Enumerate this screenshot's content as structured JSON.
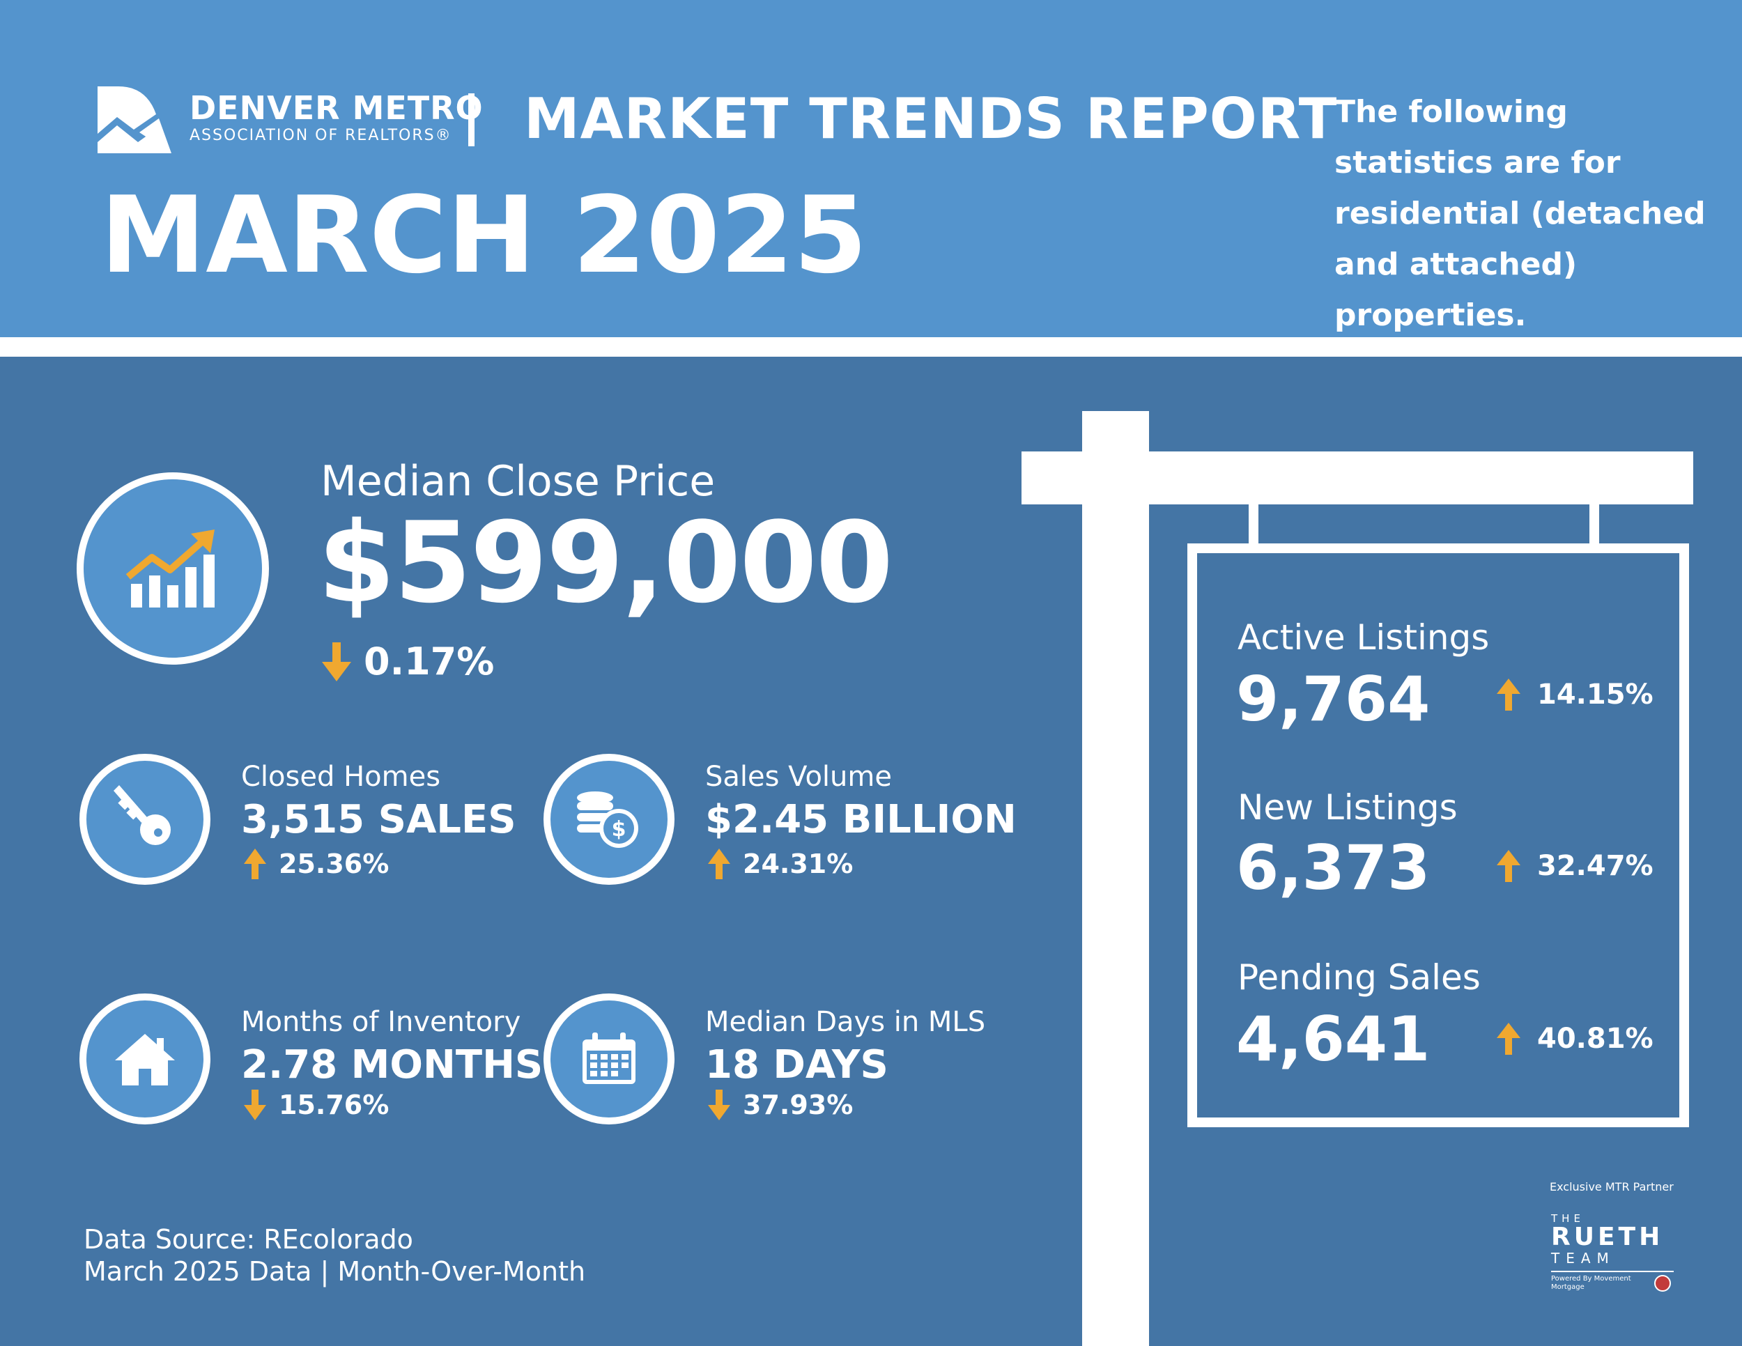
{
  "header": {
    "org_name": "DENVER METRO",
    "org_sub": "ASSOCIATION OF REALTORS®",
    "report_title": "MARKET TRENDS REPORT",
    "month": "MARCH 2025",
    "note": "The following statistics are for residential (detached and attached) properties."
  },
  "median_close_price": {
    "label": "Median Close Price",
    "value": "$599,000",
    "change": "0.17%",
    "direction": "down"
  },
  "closed_homes": {
    "label": "Closed Homes",
    "value": "3,515 SALES",
    "change": "25.36%",
    "direction": "up",
    "icon": "key-icon"
  },
  "sales_volume": {
    "label": "Sales Volume",
    "value": "$2.45 BILLION",
    "change": "24.31%",
    "direction": "up",
    "icon": "coins-icon"
  },
  "months_inventory": {
    "label": "Months of Inventory",
    "value": "2.78 MONTHS",
    "change": "15.76%",
    "direction": "down",
    "icon": "house-icon"
  },
  "median_days": {
    "label": "Median Days in MLS",
    "value": "18 DAYS",
    "change": "37.93%",
    "direction": "down",
    "icon": "calendar-icon"
  },
  "sign": {
    "active": {
      "label": "Active Listings",
      "value": "9,764",
      "change": "14.15%",
      "direction": "up"
    },
    "new": {
      "label": "New Listings",
      "value": "6,373",
      "change": "32.47%",
      "direction": "up"
    },
    "pending": {
      "label": "Pending Sales",
      "value": "4,641",
      "change": "40.81%",
      "direction": "up"
    }
  },
  "footer": {
    "data_source": "Data Source: REcolorado",
    "period": "March 2025 Data | Month-Over-Month",
    "partner_label": "Exclusive MTR Partner",
    "partner_the": "THE",
    "partner_name": "RUETH",
    "partner_team": "TEAM",
    "partner_powered": "Powered By Movement Mortgage"
  },
  "colors": {
    "header_bg": "#5494cd",
    "main_bg": "#4475a5",
    "accent": "#f0a830"
  }
}
